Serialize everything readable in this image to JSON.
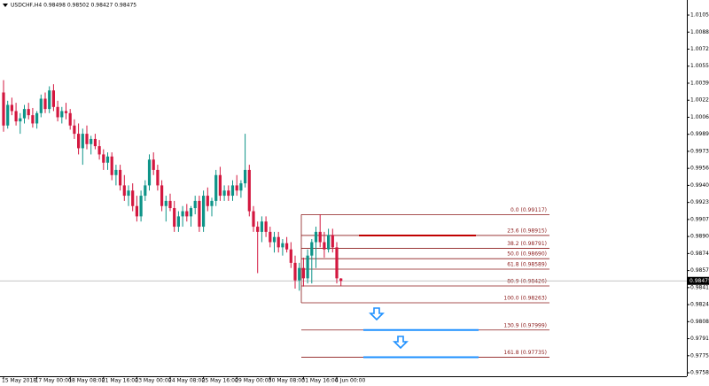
{
  "chart_data": {
    "type": "candlestick",
    "title": "USDCHF,H4  0.98498 0.98502 0.98427 0.98475",
    "categories": [
      "15 May 2018",
      null,
      null,
      null,
      null,
      null,
      null,
      null,
      "17 May 00:00",
      null,
      null,
      null,
      null,
      null,
      null,
      null,
      "18 May 08:00",
      null,
      null,
      null,
      null,
      null,
      null,
      null,
      "21 May 16:00",
      null,
      null,
      null,
      null,
      null,
      null,
      null,
      "23 May 00:00",
      null,
      null,
      null,
      null,
      null,
      null,
      null,
      "24 May 08:00",
      null,
      null,
      null,
      null,
      null,
      null,
      null,
      "25 May 16:00",
      null,
      null,
      null,
      null,
      null,
      null,
      null,
      "29 May 00:00",
      null,
      null,
      null,
      null,
      null,
      null,
      null,
      "30 May 08:00",
      null,
      null,
      null,
      null,
      null,
      null,
      null,
      "31 May 16:00",
      null,
      null,
      null,
      null,
      null,
      null,
      null,
      "4 Jun 00:00",
      null
    ],
    "open": [
      1.003,
      0.9998,
      1.0018,
      1.0012,
      1.0002,
      1.0005,
      1.0014,
      1.0008,
      1.0,
      1.001,
      1.0024,
      1.0014,
      1.0032,
      1.0016,
      1.0006,
      1.0012,
      1.001,
      0.9998,
      0.999,
      0.9976,
      0.999,
      0.998,
      0.9985,
      0.9978,
      0.997,
      0.9962,
      0.9968,
      0.995,
      0.9955,
      0.994,
      0.993,
      0.9935,
      0.992,
      0.991,
      0.993,
      0.994,
      0.9965,
      0.9955,
      0.994,
      0.992,
      0.9925,
      0.9918,
      0.99,
      0.991,
      0.9915,
      0.991,
      0.9918,
      0.9925,
      0.99,
      0.993,
      0.992,
      0.9925,
      0.995,
      0.993,
      0.9935,
      0.993,
      0.994,
      0.9935,
      0.9942,
      0.9955,
      0.9915,
      0.99,
      0.9895,
      0.9905,
      0.9895,
      0.9885,
      0.989,
      0.988,
      0.9884,
      0.9878,
      0.9865,
      0.9848,
      0.986,
      0.985,
      0.9872,
      0.9885,
      0.9895,
      0.9885,
      0.9878,
      0.9892,
      0.988,
      0.98498
    ],
    "high": [
      1.0042,
      1.0022,
      1.0025,
      1.002,
      1.001,
      1.0018,
      1.002,
      1.0015,
      1.0012,
      1.0028,
      1.003,
      1.0036,
      1.0038,
      1.0022,
      1.0016,
      1.002,
      1.0014,
      1.0004,
      1.0,
      0.9995,
      0.9998,
      0.9988,
      0.999,
      0.9984,
      0.9975,
      0.9972,
      0.9972,
      0.996,
      0.996,
      0.995,
      0.994,
      0.9942,
      0.993,
      0.9935,
      0.9945,
      0.997,
      0.9972,
      0.996,
      0.9945,
      0.993,
      0.9932,
      0.9925,
      0.9915,
      0.992,
      0.9922,
      0.992,
      0.993,
      0.993,
      0.9935,
      0.9938,
      0.9928,
      0.9955,
      0.9958,
      0.994,
      0.994,
      0.9945,
      0.995,
      0.9945,
      0.999,
      0.996,
      0.992,
      0.9905,
      0.991,
      0.991,
      0.99,
      0.9895,
      0.9895,
      0.9888,
      0.989,
      0.9885,
      0.9872,
      0.9865,
      0.987,
      0.9878,
      0.9888,
      0.99,
      0.9912,
      0.9895,
      0.9898,
      0.9898,
      0.9885,
      0.98502
    ],
    "low": [
      0.9992,
      0.9995,
      1.0008,
      0.9998,
      0.999,
      1.0,
      1.0004,
      0.9996,
      0.9995,
      1.0006,
      1.001,
      1.001,
      1.0012,
      1.0002,
      1.0,
      1.0004,
      0.9994,
      0.9985,
      0.997,
      0.996,
      0.9975,
      0.997,
      0.9975,
      0.9965,
      0.9955,
      0.9955,
      0.9945,
      0.994,
      0.9935,
      0.9925,
      0.992,
      0.9915,
      0.9905,
      0.9905,
      0.9925,
      0.9935,
      0.995,
      0.9935,
      0.9915,
      0.9905,
      0.9915,
      0.9895,
      0.9895,
      0.99,
      0.9905,
      0.99,
      0.9912,
      0.9895,
      0.9895,
      0.9915,
      0.991,
      0.992,
      0.9925,
      0.9925,
      0.9925,
      0.9925,
      0.993,
      0.9928,
      0.9938,
      0.991,
      0.9895,
      0.9855,
      0.9885,
      0.989,
      0.988,
      0.9875,
      0.9875,
      0.9872,
      0.9875,
      0.986,
      0.984,
      0.9838,
      0.9842,
      0.9845,
      0.9845,
      0.986,
      0.988,
      0.987,
      0.9875,
      0.9875,
      0.9845,
      0.98427
    ],
    "close": [
      0.9998,
      1.0018,
      1.0012,
      1.0002,
      1.0005,
      1.0014,
      1.0008,
      1.0,
      1.001,
      1.0024,
      1.0014,
      1.0032,
      1.0016,
      1.0006,
      1.0012,
      1.001,
      0.9998,
      0.999,
      0.9976,
      0.999,
      0.998,
      0.9985,
      0.9978,
      0.997,
      0.9962,
      0.9968,
      0.995,
      0.9955,
      0.994,
      0.993,
      0.9935,
      0.992,
      0.991,
      0.993,
      0.994,
      0.9965,
      0.9955,
      0.994,
      0.992,
      0.9925,
      0.9918,
      0.99,
      0.991,
      0.9915,
      0.991,
      0.9918,
      0.9925,
      0.99,
      0.993,
      0.992,
      0.9925,
      0.995,
      0.993,
      0.9935,
      0.993,
      0.994,
      0.9935,
      0.9942,
      0.9955,
      0.9915,
      0.99,
      0.9895,
      0.9905,
      0.9895,
      0.9885,
      0.989,
      0.988,
      0.9884,
      0.9878,
      0.9865,
      0.9848,
      0.986,
      0.985,
      0.9872,
      0.9885,
      0.9895,
      0.9885,
      0.9878,
      0.9892,
      0.988,
      0.985,
      0.98475
    ],
    "up_color": "#0e9488",
    "down_color": "#d3173f",
    "ylim": [
      0.97551,
      1.01196
    ],
    "yticks": [
      {
        "value": 1.0105,
        "label": "1.01050"
      },
      1.00885,
      {
        "value": 1.0072,
        "label": "1.00720"
      },
      1.00555,
      {
        "value": 1.0039,
        "label": "1.00390"
      },
      1.00225,
      {
        "value": 1.0006,
        "label": "1.00060"
      },
      0.99895,
      {
        "value": 0.9973,
        "label": "0.99730"
      },
      0.99565,
      {
        "value": 0.994,
        "label": "0.99400"
      },
      0.99235,
      {
        "value": 0.9907,
        "label": "0.99070"
      },
      0.98905,
      {
        "value": 0.9874,
        "label": "0.98740"
      },
      0.98575,
      {
        "value": 0.9841,
        "label": "0.98410"
      },
      0.98245,
      {
        "value": 0.9808,
        "label": "0.98080"
      },
      0.97915,
      {
        "value": 0.9775,
        "label": "0.97750"
      },
      0.97585
    ],
    "current_price": 0.98475,
    "fibonacci": [
      {
        "value": 0.99117,
        "label": "0.0 (0.99117)"
      },
      {
        "value": 0.98915,
        "label": "23.6 (0.98915)"
      },
      {
        "value": 0.98791,
        "label": "38.2 (0.98791)"
      },
      {
        "value": 0.9869,
        "label": "50.0 (0.98690)"
      },
      {
        "value": 0.98589,
        "label": "61.8 (0.98589)"
      },
      {
        "value": 0.98426,
        "label": "80.9 (0.98426)"
      },
      {
        "value": 0.98263,
        "label": "100.0 (0.98263)"
      },
      {
        "value": 0.97999,
        "label": "130.9 (0.97999)"
      },
      {
        "value": 0.97735,
        "label": "161.8 (0.97735)"
      }
    ],
    "fib_color": "#8b1a1a"
  }
}
